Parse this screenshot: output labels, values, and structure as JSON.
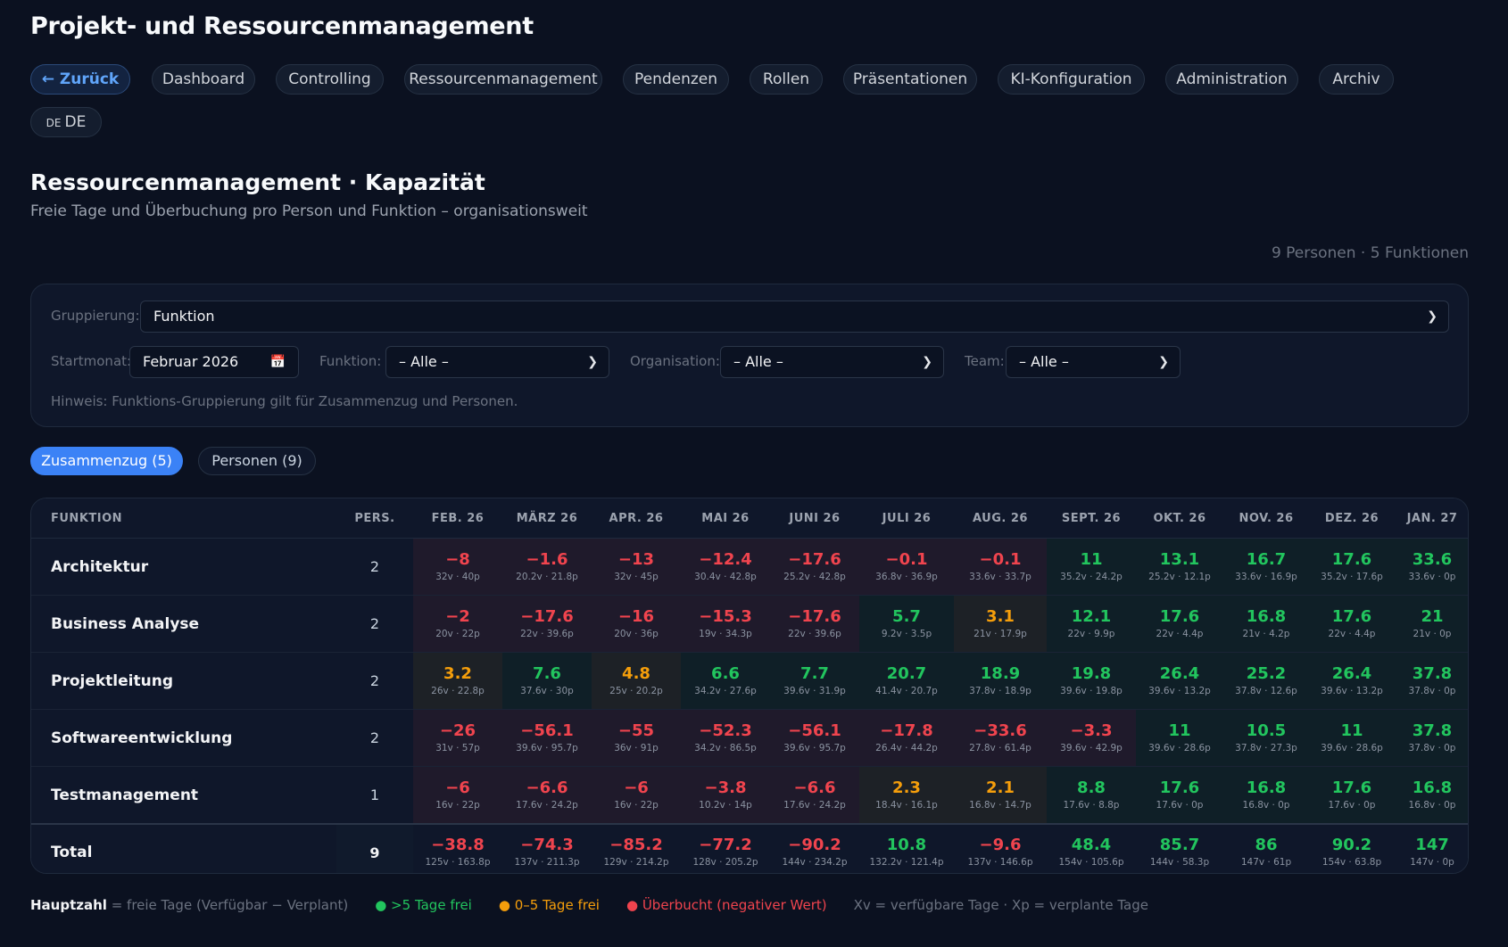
{
  "app": {
    "title": "Projekt- und Ressourcenmanagement"
  },
  "nav": {
    "back": "← Zurück",
    "items": [
      "Dashboard",
      "Controlling",
      "Ressourcenmanagement",
      "Pendenzen",
      "Rollen",
      "Präsentationen",
      "KI-Konfiguration",
      "Administration",
      "Archiv"
    ],
    "lang_code": "DE",
    "lang_label": "DE"
  },
  "section": {
    "title": "Ressourcenmanagement · Kapazität",
    "subtitle": "Freie Tage und Überbuchung pro Person und Funktion – organisationsweit",
    "counts": "9 Personen · 5 Funktionen"
  },
  "filters": {
    "grouping_label": "Gruppierung:",
    "grouping_value": "Funktion",
    "start_label": "Startmonat:",
    "start_value": "Februar 2026",
    "function_label": "Funktion:",
    "function_value": "– Alle –",
    "org_label": "Organisation:",
    "org_value": "– Alle –",
    "team_label": "Team:",
    "team_value": "– Alle –",
    "hint": "Hinweis: Funktions-Gruppierung gilt für Zusammenzug und Personen."
  },
  "tabs": {
    "summary": "Zusammenzug (5)",
    "persons": "Personen (9)"
  },
  "table": {
    "col_function": "FUNKTION",
    "col_pers": "PERS.",
    "months": [
      "FEB. 26",
      "MÄRZ 26",
      "APR. 26",
      "MAI 26",
      "JUNI 26",
      "JULI 26",
      "AUG. 26",
      "SEPT. 26",
      "OKT. 26",
      "NOV. 26",
      "DEZ. 26",
      "JAN. 27"
    ],
    "rows": [
      {
        "name": "Architektur",
        "pers": "2",
        "cells": [
          {
            "v": "−8",
            "s": "32v · 40p",
            "c": "red"
          },
          {
            "v": "−1.6",
            "s": "20.2v · 21.8p",
            "c": "red"
          },
          {
            "v": "−13",
            "s": "32v · 45p",
            "c": "red"
          },
          {
            "v": "−12.4",
            "s": "30.4v · 42.8p",
            "c": "red"
          },
          {
            "v": "−17.6",
            "s": "25.2v · 42.8p",
            "c": "red"
          },
          {
            "v": "−0.1",
            "s": "36.8v · 36.9p",
            "c": "red"
          },
          {
            "v": "−0.1",
            "s": "33.6v · 33.7p",
            "c": "red"
          },
          {
            "v": "11",
            "s": "35.2v · 24.2p",
            "c": "grn"
          },
          {
            "v": "13.1",
            "s": "25.2v · 12.1p",
            "c": "grn"
          },
          {
            "v": "16.7",
            "s": "33.6v · 16.9p",
            "c": "grn"
          },
          {
            "v": "17.6",
            "s": "35.2v · 17.6p",
            "c": "grn"
          },
          {
            "v": "33.6",
            "s": "33.6v · 0p",
            "c": "grn"
          }
        ]
      },
      {
        "name": "Business Analyse",
        "pers": "2",
        "cells": [
          {
            "v": "−2",
            "s": "20v · 22p",
            "c": "red"
          },
          {
            "v": "−17.6",
            "s": "22v · 39.6p",
            "c": "red"
          },
          {
            "v": "−16",
            "s": "20v · 36p",
            "c": "red"
          },
          {
            "v": "−15.3",
            "s": "19v · 34.3p",
            "c": "red"
          },
          {
            "v": "−17.6",
            "s": "22v · 39.6p",
            "c": "red"
          },
          {
            "v": "5.7",
            "s": "9.2v · 3.5p",
            "c": "grn"
          },
          {
            "v": "3.1",
            "s": "21v · 17.9p",
            "c": "org"
          },
          {
            "v": "12.1",
            "s": "22v · 9.9p",
            "c": "grn"
          },
          {
            "v": "17.6",
            "s": "22v · 4.4p",
            "c": "grn"
          },
          {
            "v": "16.8",
            "s": "21v · 4.2p",
            "c": "grn"
          },
          {
            "v": "17.6",
            "s": "22v · 4.4p",
            "c": "grn"
          },
          {
            "v": "21",
            "s": "21v · 0p",
            "c": "grn"
          }
        ]
      },
      {
        "name": "Projektleitung",
        "pers": "2",
        "cells": [
          {
            "v": "3.2",
            "s": "26v · 22.8p",
            "c": "org"
          },
          {
            "v": "7.6",
            "s": "37.6v · 30p",
            "c": "grn"
          },
          {
            "v": "4.8",
            "s": "25v · 20.2p",
            "c": "org"
          },
          {
            "v": "6.6",
            "s": "34.2v · 27.6p",
            "c": "grn"
          },
          {
            "v": "7.7",
            "s": "39.6v · 31.9p",
            "c": "grn"
          },
          {
            "v": "20.7",
            "s": "41.4v · 20.7p",
            "c": "grn"
          },
          {
            "v": "18.9",
            "s": "37.8v · 18.9p",
            "c": "grn"
          },
          {
            "v": "19.8",
            "s": "39.6v · 19.8p",
            "c": "grn"
          },
          {
            "v": "26.4",
            "s": "39.6v · 13.2p",
            "c": "grn"
          },
          {
            "v": "25.2",
            "s": "37.8v · 12.6p",
            "c": "grn"
          },
          {
            "v": "26.4",
            "s": "39.6v · 13.2p",
            "c": "grn"
          },
          {
            "v": "37.8",
            "s": "37.8v · 0p",
            "c": "grn"
          }
        ]
      },
      {
        "name": "Softwareentwicklung",
        "pers": "2",
        "cells": [
          {
            "v": "−26",
            "s": "31v · 57p",
            "c": "red"
          },
          {
            "v": "−56.1",
            "s": "39.6v · 95.7p",
            "c": "red"
          },
          {
            "v": "−55",
            "s": "36v · 91p",
            "c": "red"
          },
          {
            "v": "−52.3",
            "s": "34.2v · 86.5p",
            "c": "red"
          },
          {
            "v": "−56.1",
            "s": "39.6v · 95.7p",
            "c": "red"
          },
          {
            "v": "−17.8",
            "s": "26.4v · 44.2p",
            "c": "red"
          },
          {
            "v": "−33.6",
            "s": "27.8v · 61.4p",
            "c": "red"
          },
          {
            "v": "−3.3",
            "s": "39.6v · 42.9p",
            "c": "red"
          },
          {
            "v": "11",
            "s": "39.6v · 28.6p",
            "c": "grn"
          },
          {
            "v": "10.5",
            "s": "37.8v · 27.3p",
            "c": "grn"
          },
          {
            "v": "11",
            "s": "39.6v · 28.6p",
            "c": "grn"
          },
          {
            "v": "37.8",
            "s": "37.8v · 0p",
            "c": "grn"
          }
        ]
      },
      {
        "name": "Testmanagement",
        "pers": "1",
        "cells": [
          {
            "v": "−6",
            "s": "16v · 22p",
            "c": "red"
          },
          {
            "v": "−6.6",
            "s": "17.6v · 24.2p",
            "c": "red"
          },
          {
            "v": "−6",
            "s": "16v · 22p",
            "c": "red"
          },
          {
            "v": "−3.8",
            "s": "10.2v · 14p",
            "c": "red"
          },
          {
            "v": "−6.6",
            "s": "17.6v · 24.2p",
            "c": "red"
          },
          {
            "v": "2.3",
            "s": "18.4v · 16.1p",
            "c": "org"
          },
          {
            "v": "2.1",
            "s": "16.8v · 14.7p",
            "c": "org"
          },
          {
            "v": "8.8",
            "s": "17.6v · 8.8p",
            "c": "grn"
          },
          {
            "v": "17.6",
            "s": "17.6v · 0p",
            "c": "grn"
          },
          {
            "v": "16.8",
            "s": "16.8v · 0p",
            "c": "grn"
          },
          {
            "v": "17.6",
            "s": "17.6v · 0p",
            "c": "grn"
          },
          {
            "v": "16.8",
            "s": "16.8v · 0p",
            "c": "grn"
          }
        ]
      }
    ],
    "total": {
      "name": "Total",
      "pers": "9",
      "cells": [
        {
          "v": "−38.8",
          "s": "125v · 163.8p",
          "c": "red"
        },
        {
          "v": "−74.3",
          "s": "137v · 211.3p",
          "c": "red"
        },
        {
          "v": "−85.2",
          "s": "129v · 214.2p",
          "c": "red"
        },
        {
          "v": "−77.2",
          "s": "128v · 205.2p",
          "c": "red"
        },
        {
          "v": "−90.2",
          "s": "144v · 234.2p",
          "c": "red"
        },
        {
          "v": "10.8",
          "s": "132.2v · 121.4p",
          "c": "grn"
        },
        {
          "v": "−9.6",
          "s": "137v · 146.6p",
          "c": "red"
        },
        {
          "v": "48.4",
          "s": "154v · 105.6p",
          "c": "grn"
        },
        {
          "v": "85.7",
          "s": "144v · 58.3p",
          "c": "grn"
        },
        {
          "v": "86",
          "s": "147v · 61p",
          "c": "grn"
        },
        {
          "v": "90.2",
          "s": "154v · 63.8p",
          "c": "grn"
        },
        {
          "v": "147",
          "s": "147v · 0p",
          "c": "grn"
        }
      ]
    }
  },
  "legend": {
    "main_bold": "Hauptzahl",
    "main_rest": " = freie Tage (Verfügbar − Verplant)",
    "green": "● >5 Tage frei",
    "orange": "● 0–5 Tage frei",
    "red": "● Überbucht (negativer Wert)",
    "xv": "Xv = verfügbare Tage · Xp = verplante Tage"
  }
}
